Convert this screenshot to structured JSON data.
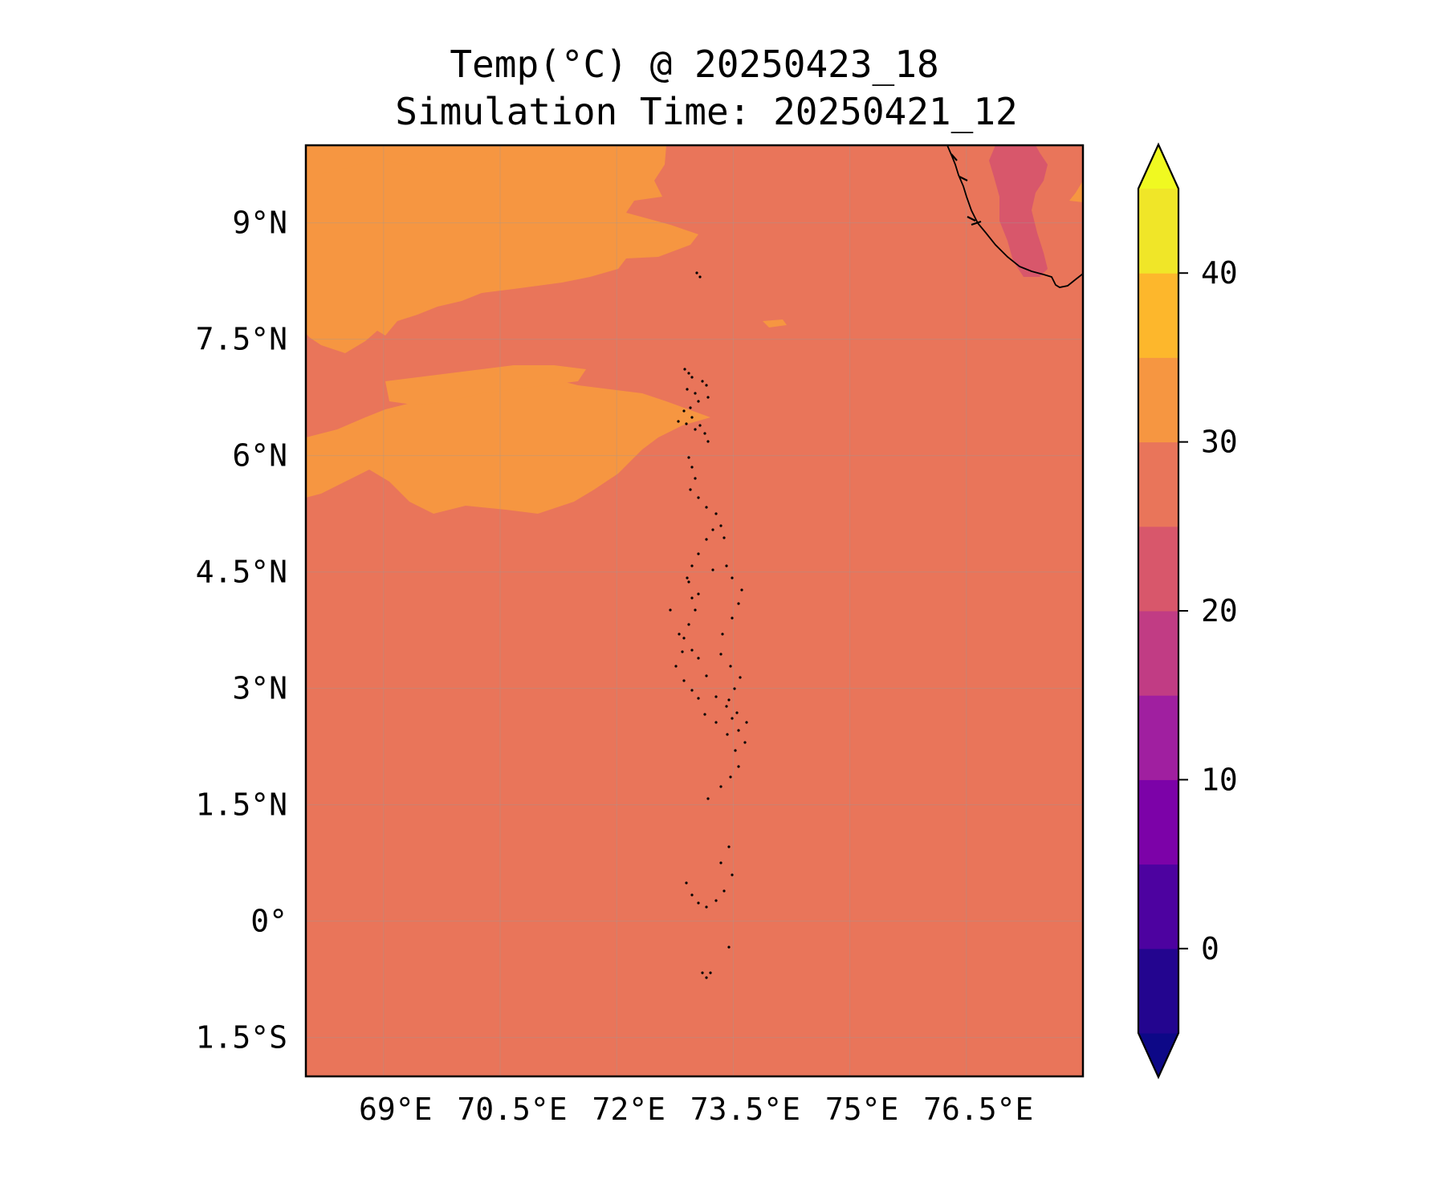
{
  "title_line1": "Temp(°C) @ 20250423_18",
  "title_line2": "Simulation Time: 20250421_12",
  "map": {
    "lon_range": [
      68.0,
      78.0
    ],
    "lat_range": [
      -2.0,
      10.0
    ],
    "lon_ticks": [
      {
        "value": 69.0,
        "label": "69°E"
      },
      {
        "value": 70.5,
        "label": "70.5°E"
      },
      {
        "value": 72.0,
        "label": "72°E"
      },
      {
        "value": 73.5,
        "label": "73.5°E"
      },
      {
        "value": 75.0,
        "label": "75°E"
      },
      {
        "value": 76.5,
        "label": "76.5°E"
      }
    ],
    "lat_ticks": [
      {
        "value": 9.0,
        "label": "9°N"
      },
      {
        "value": 7.5,
        "label": "7.5°N"
      },
      {
        "value": 6.0,
        "label": "6°N"
      },
      {
        "value": 4.5,
        "label": "4.5°N"
      },
      {
        "value": 3.0,
        "label": "3°N"
      },
      {
        "value": 1.5,
        "label": "1.5°N"
      },
      {
        "value": 0.0,
        "label": "0°"
      },
      {
        "value": -1.5,
        "label": "1.5°S"
      }
    ],
    "gridlines": true,
    "background_band_color": "#e9755a"
  },
  "colorbar": {
    "min": -5,
    "max": 45,
    "extend": "both",
    "levels": [
      {
        "from": -5,
        "to": 0,
        "color": "#23058f"
      },
      {
        "from": 0,
        "to": 5,
        "color": "#4d02a0"
      },
      {
        "from": 5,
        "to": 10,
        "color": "#7c02a8"
      },
      {
        "from": 10,
        "to": 15,
        "color": "#a01fa0"
      },
      {
        "from": 15,
        "to": 20,
        "color": "#c13c84"
      },
      {
        "from": 20,
        "to": 25,
        "color": "#d8576b"
      },
      {
        "from": 25,
        "to": 30,
        "color": "#e9755a"
      },
      {
        "from": 30,
        "to": 35,
        "color": "#f69641"
      },
      {
        "from": 35,
        "to": 40,
        "color": "#fdb72c"
      },
      {
        "from": 40,
        "to": 45,
        "color": "#f0e628"
      }
    ],
    "under_color": "#0d0887",
    "over_color": "#f0f921",
    "ticks": [
      {
        "value": 0,
        "label": "0"
      },
      {
        "value": 10,
        "label": "10"
      },
      {
        "value": 20,
        "label": "20"
      },
      {
        "value": 30,
        "label": "30"
      },
      {
        "value": 40,
        "label": "40"
      }
    ]
  },
  "regions": [
    {
      "name": "warm-30-35-north-band",
      "color": "#f69641"
    },
    {
      "name": "warm-30-35-central-band",
      "color": "#f69641"
    },
    {
      "name": "warm-30-35-western-band",
      "color": "#f69641"
    },
    {
      "name": "cool-20-25-india-inland",
      "color": "#d8576b"
    }
  ]
}
